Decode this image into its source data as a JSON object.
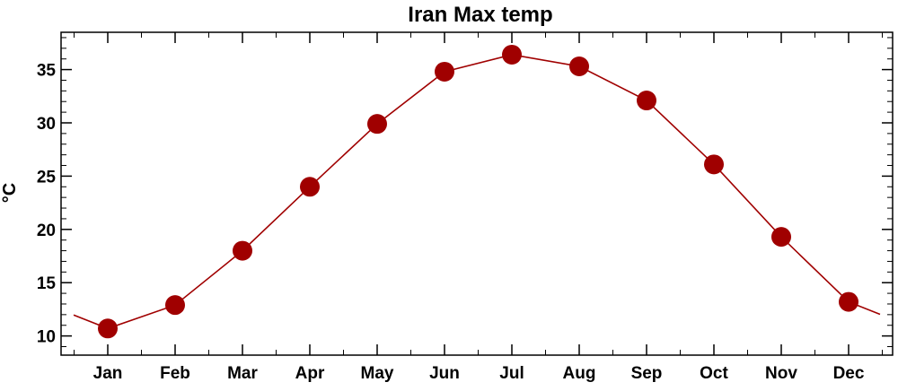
{
  "chart_data": {
    "type": "line",
    "title": "Iran Max temp",
    "xlabel": "",
    "ylabel": "°C",
    "categories": [
      "Jan",
      "Feb",
      "Mar",
      "Apr",
      "May",
      "Jun",
      "Jul",
      "Aug",
      "Sep",
      "Oct",
      "Nov",
      "Dec"
    ],
    "series": [
      {
        "values": [
          10.7,
          12.9,
          18.0,
          24.0,
          29.9,
          34.8,
          36.4,
          35.3,
          32.1,
          26.1,
          19.3,
          13.2
        ]
      }
    ],
    "ylim": [
      8.2,
      38.5
    ],
    "yticks": [
      10,
      15,
      20,
      25,
      30,
      35
    ],
    "grid": false,
    "line_color": "#a00000",
    "marker_color": "#a00000"
  }
}
